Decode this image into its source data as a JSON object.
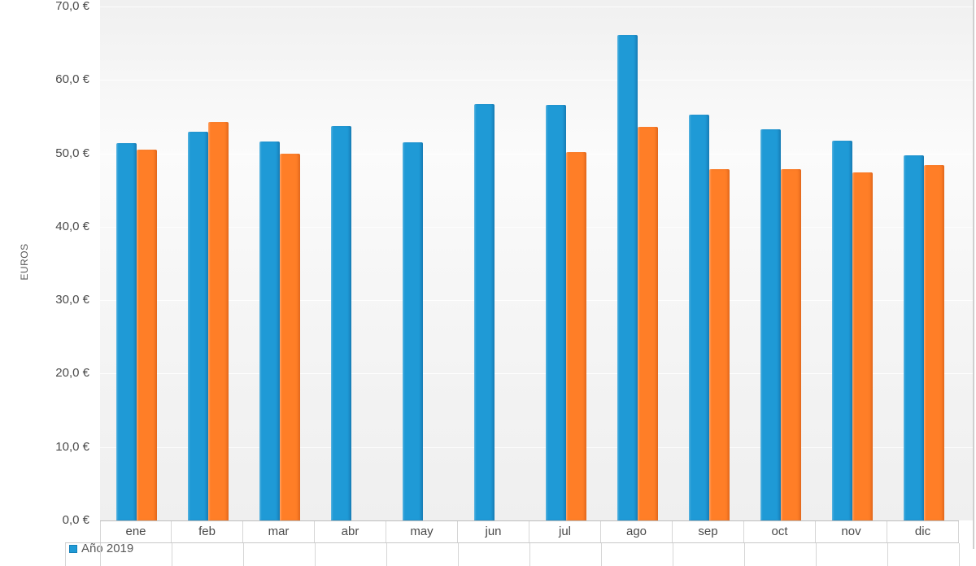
{
  "chart_data": {
    "type": "bar",
    "title": "",
    "xlabel": "",
    "ylabel": "EUROS",
    "ylim": [
      0,
      70
    ],
    "grid": "subtle-white-horizontal",
    "legend_position": "bottom-left",
    "categories": [
      "ene",
      "feb",
      "mar",
      "abr",
      "may",
      "jun",
      "jul",
      "ago",
      "sep",
      "oct",
      "nov",
      "dic"
    ],
    "series": [
      {
        "name": "Año 2019",
        "color": "#1F9AD6",
        "values": [
          51.4,
          52.9,
          51.6,
          53.7,
          51.5,
          56.7,
          56.6,
          66.1,
          55.3,
          53.3,
          51.7,
          49.7
        ]
      },
      {
        "name": "",
        "color": "#FF7E27",
        "values": [
          50.5,
          54.3,
          50.0,
          null,
          null,
          null,
          50.2,
          53.6,
          47.8,
          47.8,
          47.4,
          48.4
        ]
      }
    ],
    "y_ticks": [
      {
        "value": 70,
        "label": "70,0 €"
      },
      {
        "value": 60,
        "label": "60,0 €"
      },
      {
        "value": 50,
        "label": "50,0 €"
      },
      {
        "value": 40,
        "label": "40,0 €"
      },
      {
        "value": 30,
        "label": "30,0 €"
      },
      {
        "value": 20,
        "label": "20,0 €"
      },
      {
        "value": 10,
        "label": "10,0 €"
      },
      {
        "value": 0,
        "label": "0,0 €"
      }
    ]
  },
  "legend": {
    "entries": [
      {
        "label": "Año 2019",
        "color": "#1F9AD6"
      }
    ]
  },
  "colors": {
    "bar_blue": "#1F9AD6",
    "bar_orange": "#FF7E27",
    "axis_text": "#4A4A4A",
    "legend_text": "#595959",
    "table_border": "#D6D6D6",
    "plot_bg_dark": "#EFEFEF",
    "plot_bg_light": "#FBFBFB"
  }
}
